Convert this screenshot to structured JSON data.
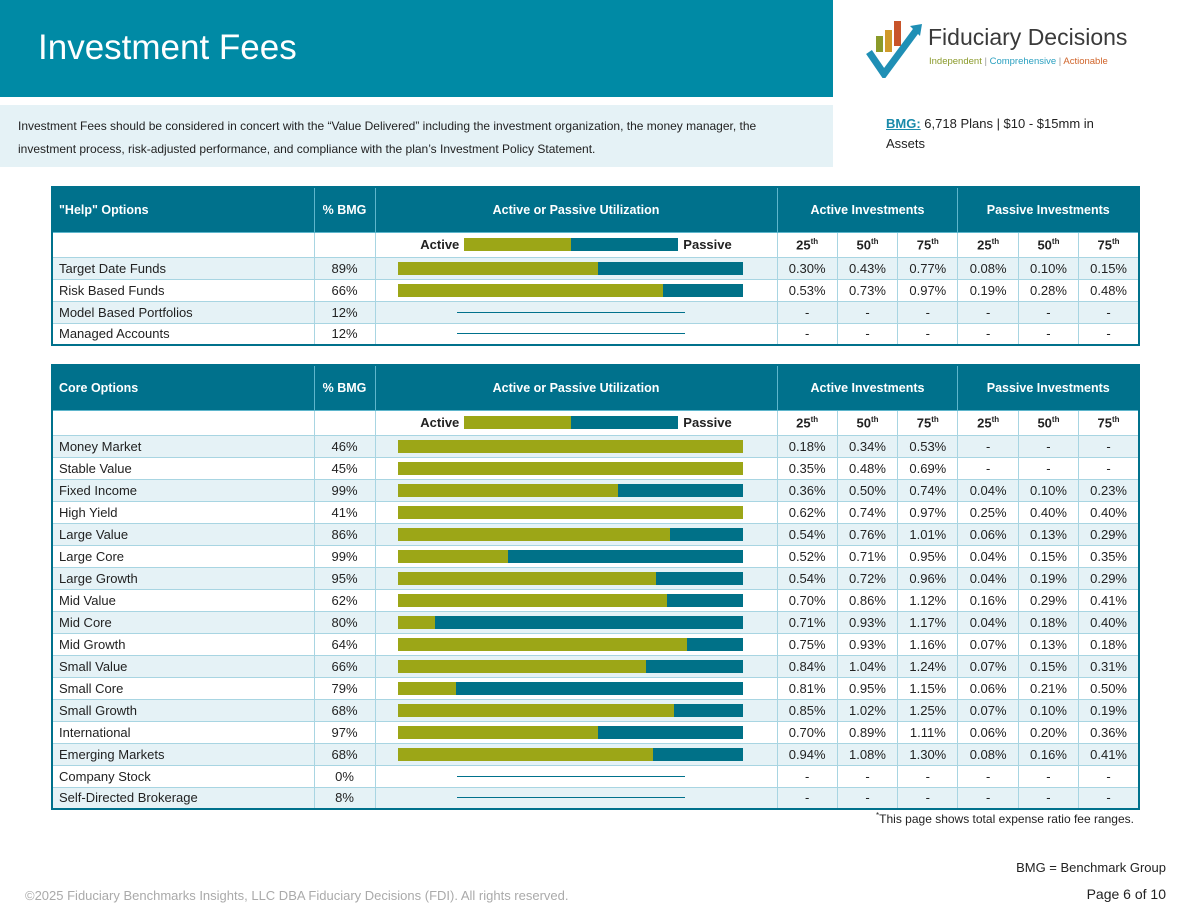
{
  "header": {
    "title": "Investment Fees"
  },
  "intro": "Investment Fees should be considered in concert with the “Value Delivered” including the investment organization, the money manager, the investment process, risk-adjusted performance, and compliance with the plan’s Investment Policy Statement.",
  "logo": {
    "name": "Fiduciary Decisions",
    "tag1": "Independent",
    "tag2": "Comprehensive",
    "tag3": "Actionable",
    "colors": [
      "#8a9a2a",
      "#2aa0c0",
      "#d0642a"
    ]
  },
  "bmg": {
    "label": "BMG:",
    "text": "6,718 Plans | $10 - $15mm in Assets"
  },
  "colors": {
    "active": "#9ca617",
    "passive": "#007188",
    "header": "#00718c"
  },
  "columns": {
    "pct": "% BMG",
    "util": "Active or Passive Utilization",
    "active": "Active Investments",
    "passive": "Passive Investments",
    "legend_active": "Active",
    "legend_passive": "Passive",
    "pcts": [
      "25",
      "50",
      "75"
    ],
    "suffix": "th"
  },
  "tables": [
    {
      "title": "\"Help\" Options",
      "rows": [
        {
          "name": "Target Date Funds",
          "pct": "89%",
          "active_share": 0.58,
          "vals": [
            "0.30%",
            "0.43%",
            "0.77%",
            "0.08%",
            "0.10%",
            "0.15%"
          ]
        },
        {
          "name": "Risk Based Funds",
          "pct": "66%",
          "active_share": 0.77,
          "vals": [
            "0.53%",
            "0.73%",
            "0.97%",
            "0.19%",
            "0.28%",
            "0.48%"
          ]
        },
        {
          "name": "Model Based Portfolios",
          "pct": "12%",
          "active_share": null,
          "vals": [
            "-",
            "-",
            "-",
            "-",
            "-",
            "-"
          ]
        },
        {
          "name": "Managed Accounts",
          "pct": "12%",
          "active_share": null,
          "vals": [
            "-",
            "-",
            "-",
            "-",
            "-",
            "-"
          ]
        }
      ]
    },
    {
      "title": "Core Options",
      "rows": [
        {
          "name": "Money Market",
          "pct": "46%",
          "active_share": 1.0,
          "vals": [
            "0.18%",
            "0.34%",
            "0.53%",
            "-",
            "-",
            "-"
          ]
        },
        {
          "name": "Stable Value",
          "pct": "45%",
          "active_share": 1.0,
          "vals": [
            "0.35%",
            "0.48%",
            "0.69%",
            "-",
            "-",
            "-"
          ]
        },
        {
          "name": "Fixed Income",
          "pct": "99%",
          "active_share": 0.64,
          "vals": [
            "0.36%",
            "0.50%",
            "0.74%",
            "0.04%",
            "0.10%",
            "0.23%"
          ]
        },
        {
          "name": "High Yield",
          "pct": "41%",
          "active_share": 1.0,
          "vals": [
            "0.62%",
            "0.74%",
            "0.97%",
            "0.25%",
            "0.40%",
            "0.40%"
          ]
        },
        {
          "name": "Large Value",
          "pct": "86%",
          "active_share": 0.79,
          "vals": [
            "0.54%",
            "0.76%",
            "1.01%",
            "0.06%",
            "0.13%",
            "0.29%"
          ]
        },
        {
          "name": "Large Core",
          "pct": "99%",
          "active_share": 0.32,
          "vals": [
            "0.52%",
            "0.71%",
            "0.95%",
            "0.04%",
            "0.15%",
            "0.35%"
          ]
        },
        {
          "name": "Large Growth",
          "pct": "95%",
          "active_share": 0.75,
          "vals": [
            "0.54%",
            "0.72%",
            "0.96%",
            "0.04%",
            "0.19%",
            "0.29%"
          ]
        },
        {
          "name": "Mid Value",
          "pct": "62%",
          "active_share": 0.78,
          "vals": [
            "0.70%",
            "0.86%",
            "1.12%",
            "0.16%",
            "0.29%",
            "0.41%"
          ]
        },
        {
          "name": "Mid Core",
          "pct": "80%",
          "active_share": 0.11,
          "vals": [
            "0.71%",
            "0.93%",
            "1.17%",
            "0.04%",
            "0.18%",
            "0.40%"
          ]
        },
        {
          "name": "Mid Growth",
          "pct": "64%",
          "active_share": 0.84,
          "vals": [
            "0.75%",
            "0.93%",
            "1.16%",
            "0.07%",
            "0.13%",
            "0.18%"
          ]
        },
        {
          "name": "Small Value",
          "pct": "66%",
          "active_share": 0.72,
          "vals": [
            "0.84%",
            "1.04%",
            "1.24%",
            "0.07%",
            "0.15%",
            "0.31%"
          ]
        },
        {
          "name": "Small Core",
          "pct": "79%",
          "active_share": 0.17,
          "vals": [
            "0.81%",
            "0.95%",
            "1.15%",
            "0.06%",
            "0.21%",
            "0.50%"
          ]
        },
        {
          "name": "Small Growth",
          "pct": "68%",
          "active_share": 0.8,
          "vals": [
            "0.85%",
            "1.02%",
            "1.25%",
            "0.07%",
            "0.10%",
            "0.19%"
          ]
        },
        {
          "name": "International",
          "pct": "97%",
          "active_share": 0.58,
          "vals": [
            "0.70%",
            "0.89%",
            "1.11%",
            "0.06%",
            "0.20%",
            "0.36%"
          ]
        },
        {
          "name": "Emerging Markets",
          "pct": "68%",
          "active_share": 0.74,
          "vals": [
            "0.94%",
            "1.08%",
            "1.30%",
            "0.08%",
            "0.16%",
            "0.41%"
          ]
        },
        {
          "name": "Company Stock",
          "pct": "0%",
          "active_share": null,
          "vals": [
            "-",
            "-",
            "-",
            "-",
            "-",
            "-"
          ]
        },
        {
          "name": "Self-Directed Brokerage",
          "pct": "8%",
          "active_share": null,
          "vals": [
            "-",
            "-",
            "-",
            "-",
            "-",
            "-"
          ]
        }
      ]
    }
  ],
  "footer": {
    "note_mark": "*",
    "note": "This page shows total expense ratio fee ranges.",
    "bmg_def": "BMG = Benchmark Group",
    "copyright": "©2025 Fiduciary Benchmarks Insights, LLC DBA Fiduciary Decisions (FDI). All rights reserved.",
    "page": "Page 6 of 10"
  }
}
